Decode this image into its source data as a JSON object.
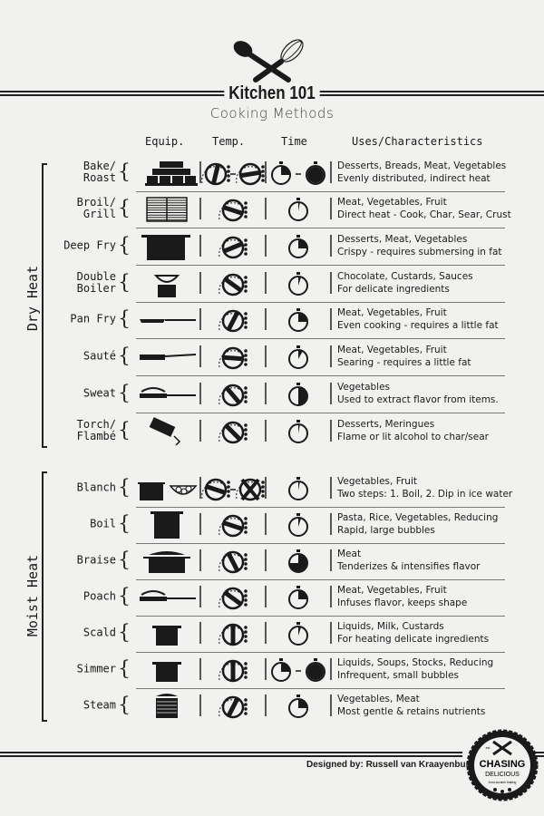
{
  "header": {
    "title": "Kitchen 101",
    "subtitle": "Cooking Methods"
  },
  "columns": {
    "equip": "Equip.",
    "temp": "Temp.",
    "time": "Time",
    "uses": "Uses/Characteristics"
  },
  "sections": [
    {
      "label": "Dry Heat",
      "methods": [
        {
          "name": "Bake/\nRoast",
          "equip": "stacked-bakeware",
          "heat": [
            0.55,
            0.8
          ],
          "time": [
            0.25,
            1.0
          ],
          "uses": "Desserts, Breads, Meat, Vegetables",
          "note": "Evenly distributed, indirect heat"
        },
        {
          "name": "Broil/\nGrill",
          "equip": "grill-grate",
          "heat": [
            0.9
          ],
          "time": [
            0.03
          ],
          "uses": "Meat, Vegetables, Fruit",
          "note": "Direct heat - Cook, Char, Sear, Crust"
        },
        {
          "name": "Deep Fry",
          "equip": "stock-pot",
          "heat": [
            0.75
          ],
          "time": [
            0.25
          ],
          "uses": "Desserts, Meat, Vegetables",
          "note": "Crispy - requires submersing in fat"
        },
        {
          "name": "Double\nBoiler",
          "equip": "double-boiler",
          "heat": [
            0.3
          ],
          "time": [
            0.05
          ],
          "uses": "Chocolate, Custards, Sauces",
          "note": "For delicate ingredients"
        },
        {
          "name": "Pan Fry",
          "equip": "frying-pan",
          "heat": [
            0.6
          ],
          "time": [
            0.25
          ],
          "uses": "Meat, Vegetables, Fruit",
          "note": "Even cooking - requires a little fat"
        },
        {
          "name": "Sauté",
          "equip": "saute-pan",
          "heat": [
            0.85
          ],
          "time": [
            0.08
          ],
          "uses": "Meat, Vegetables, Fruit",
          "note": "Searing - requires a little fat"
        },
        {
          "name": "Sweat",
          "equip": "covered-pan",
          "heat": [
            0.35
          ],
          "time": [
            0.5
          ],
          "uses": "Vegetables",
          "note": "Used to extract flavor from items."
        },
        {
          "name": "Torch/\nFlambé",
          "equip": "torch",
          "heat": [
            1.0
          ],
          "time": [
            0.03
          ],
          "uses": "Desserts, Meringues",
          "note": "Flame or lit alcohol to char/sear"
        }
      ]
    },
    {
      "label": "Moist Heat",
      "methods": [
        {
          "name": "Blanch",
          "equip": "pot-and-ice-bowl",
          "heat": [
            0.9,
            "off"
          ],
          "time": [
            0.03
          ],
          "uses": "Vegetables, Fruit",
          "note": "Two steps: 1. Boil, 2. Dip in ice water"
        },
        {
          "name": "Boil",
          "equip": "tall-pot",
          "heat": [
            0.9
          ],
          "time": [
            0.05
          ],
          "uses": "Pasta, Rice, Vegetables, Reducing",
          "note": "Rapid, large bubbles"
        },
        {
          "name": "Braise",
          "equip": "dutch-oven",
          "heat": [
            0.4
          ],
          "time": [
            0.75
          ],
          "uses": "Meat",
          "note": "Tenderizes & intensifies flavor"
        },
        {
          "name": "Poach",
          "equip": "covered-pan",
          "heat": [
            0.3
          ],
          "time": [
            0.25
          ],
          "uses": "Meat, Vegetables, Fruit",
          "note": "Infuses flavor, keeps shape"
        },
        {
          "name": "Scald",
          "equip": "saucepan",
          "heat": [
            0.5
          ],
          "time": [
            0.05
          ],
          "uses": "Liquids, Milk, Custards",
          "note": "For heating delicate ingredients"
        },
        {
          "name": "Simmer",
          "equip": "saucepan",
          "heat": [
            0.5
          ],
          "time": [
            0.25,
            1.0
          ],
          "uses": "Liquids, Soups, Stocks, Reducing",
          "note": "Infrequent, small bubbles"
        },
        {
          "name": "Steam",
          "equip": "steamer",
          "heat": [
            0.6
          ],
          "time": [
            0.25
          ],
          "uses": "Vegetables, Meat",
          "note": "Most gentle & retains nutrients"
        }
      ]
    }
  ],
  "footer": {
    "credit": "Designed by: Russell van Kraayenburg",
    "badge": {
      "name": "CHASING",
      "sub": "DELICIOUS",
      "tag": "from-scratch baking",
      "est": "est"
    }
  },
  "colors": {
    "ink": "#1a1a1a",
    "paper": "#f1f1ef"
  }
}
